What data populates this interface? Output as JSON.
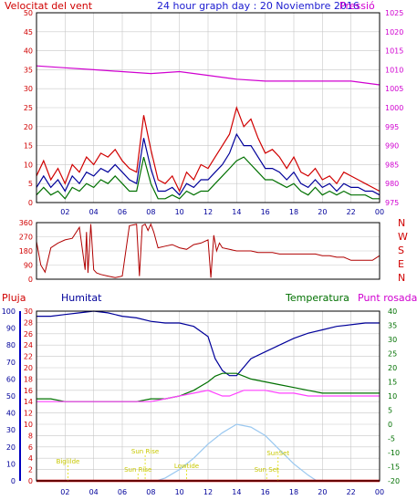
{
  "header": {
    "left_label": "Velocitat del vent",
    "center_title": "24 hour graph day : 20 Noviembre 2016",
    "right_label": "Pressió"
  },
  "colors": {
    "red": "#d00000",
    "magenta": "#d000d0",
    "blue": "#00009a",
    "green": "#007000",
    "pink": "#ff40ff",
    "dark_red": "#b00000",
    "sky": "#9ac8f0",
    "yellow": "#e0e000",
    "grid": "#c8c8c8"
  },
  "chart_data": [
    {
      "type": "line",
      "name": "wind-and-pressure",
      "x_ticks": [
        "02",
        "04",
        "06",
        "08",
        "10",
        "12",
        "14",
        "16",
        "18",
        "20",
        "22",
        "00"
      ],
      "y_left": {
        "min": 0,
        "max": 50,
        "ticks": [
          0,
          5,
          10,
          15,
          20,
          25,
          30,
          35,
          40,
          45,
          50
        ]
      },
      "y_right": {
        "min": 975,
        "max": 1025,
        "ticks": [
          975,
          980,
          985,
          990,
          995,
          1000,
          1005,
          1010,
          1015,
          1020,
          1025
        ]
      },
      "series": [
        {
          "color": "red",
          "x": [
            0,
            0.5,
            1,
            1.5,
            2,
            2.5,
            3,
            3.5,
            4,
            4.5,
            5,
            5.5,
            6,
            6.5,
            7,
            7.5,
            8,
            8.5,
            9,
            9.5,
            10,
            10.5,
            11,
            11.5,
            12,
            12.5,
            13,
            13.5,
            14,
            14.5,
            15,
            15.5,
            16,
            16.5,
            17,
            17.5,
            18,
            18.5,
            19,
            19.5,
            20,
            20.5,
            21,
            21.5,
            22,
            22.5,
            23,
            23.5,
            24
          ],
          "y": [
            7,
            11,
            6,
            9,
            5,
            10,
            8,
            12,
            10,
            13,
            12,
            14,
            11,
            9,
            8,
            23,
            14,
            6,
            5,
            7,
            3,
            8,
            6,
            10,
            9,
            12,
            15,
            18,
            25,
            20,
            22,
            17,
            13,
            14,
            12,
            9,
            12,
            8,
            7,
            9,
            6,
            7,
            5,
            8,
            7,
            6,
            5,
            4,
            3
          ]
        },
        {
          "color": "blue",
          "x": [
            0,
            0.5,
            1,
            1.5,
            2,
            2.5,
            3,
            3.5,
            4,
            4.5,
            5,
            5.5,
            6,
            6.5,
            7,
            7.5,
            8,
            8.5,
            9,
            9.5,
            10,
            10.5,
            11,
            11.5,
            12,
            12.5,
            13,
            13.5,
            14,
            14.5,
            15,
            15.5,
            16,
            16.5,
            17,
            17.5,
            18,
            18.5,
            19,
            19.5,
            20,
            20.5,
            21,
            21.5,
            22,
            22.5,
            23,
            23.5,
            24
          ],
          "y": [
            4,
            7,
            4,
            6,
            3,
            7,
            5,
            8,
            7,
            9,
            8,
            10,
            8,
            6,
            5,
            17,
            9,
            3,
            3,
            4,
            2,
            5,
            4,
            6,
            6,
            8,
            10,
            13,
            18,
            15,
            15,
            12,
            9,
            9,
            8,
            6,
            8,
            5,
            4,
            6,
            4,
            5,
            3,
            5,
            4,
            4,
            3,
            3,
            2
          ]
        },
        {
          "color": "green",
          "x": [
            0,
            0.5,
            1,
            1.5,
            2,
            2.5,
            3,
            3.5,
            4,
            4.5,
            5,
            5.5,
            6,
            6.5,
            7,
            7.5,
            8,
            8.5,
            9,
            9.5,
            10,
            10.5,
            11,
            11.5,
            12,
            12.5,
            13,
            13.5,
            14,
            14.5,
            15,
            15.5,
            16,
            16.5,
            17,
            17.5,
            18,
            18.5,
            19,
            19.5,
            20,
            20.5,
            21,
            21.5,
            22,
            22.5,
            23,
            23.5,
            24
          ],
          "y": [
            2,
            4,
            2,
            3,
            1,
            4,
            3,
            5,
            4,
            6,
            5,
            7,
            5,
            3,
            3,
            12,
            5,
            1,
            1,
            2,
            1,
            3,
            2,
            3,
            3,
            5,
            7,
            9,
            11,
            12,
            10,
            8,
            6,
            6,
            5,
            4,
            5,
            3,
            2,
            4,
            2,
            3,
            2,
            3,
            2,
            2,
            2,
            1,
            1
          ]
        },
        {
          "color": "magenta",
          "axis": "right",
          "x": [
            0,
            2,
            4,
            6,
            8,
            10,
            12,
            14,
            16,
            18,
            20,
            22,
            24
          ],
          "y": [
            1011,
            1010.5,
            1010,
            1009.5,
            1009,
            1009.5,
            1008.5,
            1007.5,
            1007,
            1007,
            1007,
            1007,
            1006
          ]
        }
      ]
    },
    {
      "type": "line",
      "name": "wind-direction",
      "y_ticks": [
        0,
        90,
        180,
        270,
        360
      ],
      "compass": [
        "N",
        "W",
        "S",
        "E",
        "N"
      ],
      "series": [
        {
          "color": "dark_red",
          "x": [
            0,
            0.3,
            0.6,
            1,
            1.5,
            2,
            2.5,
            3,
            3.4,
            3.5,
            3.6,
            3.8,
            4,
            4.2,
            4.5,
            5,
            5.5,
            6,
            6.5,
            7,
            7.2,
            7.4,
            7.6,
            7.8,
            8,
            8.2,
            8.5,
            9,
            9.5,
            10,
            10.5,
            11,
            11.5,
            12,
            12.2,
            12.4,
            12.6,
            12.8,
            13,
            13.5,
            14,
            14.5,
            15,
            15.5,
            16,
            16.5,
            17,
            17.5,
            18,
            18.5,
            19,
            19.5,
            20,
            20.5,
            21,
            21.5,
            22,
            22.5,
            23,
            23.5,
            24
          ],
          "y": [
            240,
            90,
            45,
            200,
            230,
            250,
            260,
            330,
            60,
            300,
            40,
            350,
            60,
            40,
            30,
            20,
            10,
            20,
            340,
            350,
            20,
            340,
            350,
            310,
            350,
            300,
            200,
            210,
            220,
            200,
            190,
            220,
            230,
            250,
            10,
            280,
            180,
            230,
            200,
            190,
            180,
            180,
            180,
            170,
            170,
            170,
            160,
            160,
            160,
            160,
            160,
            160,
            150,
            150,
            140,
            140,
            120,
            120,
            120,
            120,
            150
          ]
        }
      ]
    },
    {
      "type": "line",
      "name": "rain-humidity-temperature",
      "x_ticks": [
        "02",
        "04",
        "06",
        "08",
        "10",
        "12",
        "14",
        "16",
        "18",
        "20",
        "22",
        "00"
      ],
      "y_rain": {
        "min": 0,
        "max": 30,
        "ticks": [
          0,
          2,
          4,
          6,
          8,
          10,
          12,
          14,
          16,
          18,
          20,
          22,
          24,
          26,
          28,
          30
        ]
      },
      "y_humidity": {
        "min": 0,
        "max": 100,
        "ticks": [
          0,
          10,
          20,
          30,
          40,
          50,
          60,
          70,
          80,
          90,
          100
        ]
      },
      "y_temperature": {
        "min": -20,
        "max": 40,
        "ticks": [
          -20,
          -15,
          -10,
          -5,
          0,
          5,
          10,
          15,
          20,
          25,
          30,
          35,
          40
        ]
      },
      "series": [
        {
          "color": "blue",
          "axis": "humidity",
          "x": [
            0,
            1,
            2,
            3,
            4,
            5,
            6,
            7,
            8,
            9,
            10,
            11,
            12,
            12.5,
            13,
            13.5,
            14,
            14.5,
            15,
            16,
            17,
            18,
            19,
            20,
            21,
            22,
            23,
            24
          ],
          "y": [
            97,
            97,
            98,
            99,
            100,
            99,
            97,
            96,
            94,
            93,
            93,
            91,
            85,
            72,
            65,
            62,
            62,
            67,
            72,
            76,
            80,
            84,
            87,
            89,
            91,
            92,
            93,
            93
          ]
        },
        {
          "color": "green",
          "axis": "temperature",
          "x": [
            0,
            1,
            2,
            3,
            4,
            5,
            6,
            7,
            8,
            9,
            10,
            11,
            12,
            12.5,
            13,
            13.5,
            14,
            14.5,
            15,
            16,
            17,
            18,
            19,
            20,
            21,
            22,
            23,
            24
          ],
          "y": [
            9,
            9,
            8,
            8,
            8,
            8,
            8,
            8,
            9,
            9,
            10,
            12,
            15,
            17,
            18,
            18,
            18,
            17,
            16,
            15,
            14,
            13,
            12,
            11,
            11,
            11,
            11,
            11
          ]
        },
        {
          "color": "pink",
          "axis": "temperature",
          "x": [
            0,
            1,
            2,
            3,
            4,
            5,
            6,
            7,
            8,
            9,
            10,
            11,
            12,
            12.5,
            13,
            13.5,
            14,
            14.5,
            15,
            16,
            17,
            18,
            19,
            20,
            21,
            22,
            23,
            24
          ],
          "y": [
            8,
            8,
            8,
            8,
            8,
            8,
            8,
            8,
            8,
            9,
            10,
            11,
            12,
            11,
            10,
            10,
            11,
            12,
            12,
            12,
            11,
            11,
            10,
            10,
            10,
            10,
            10,
            10
          ]
        },
        {
          "color": "sky",
          "axis": "temperature",
          "x": [
            8.4,
            9,
            10,
            11,
            12,
            13,
            14,
            15,
            16,
            17,
            18,
            19,
            19.6
          ],
          "y": [
            -20,
            -19,
            -16,
            -12,
            -7,
            -3,
            0,
            -1,
            -4,
            -9,
            -14,
            -18,
            -20
          ]
        },
        {
          "color": "red",
          "axis": "rain",
          "x": [
            0,
            24
          ],
          "y": [
            0,
            0
          ]
        }
      ],
      "legend": {
        "rain": "Pluja",
        "humidity": "Humitat",
        "temperature": "Temperatura",
        "dewpoint": "Punt rosada"
      },
      "annotations": [
        {
          "text": "Biglilde",
          "x": 2.2
        },
        {
          "text": "Sun Rise",
          "x": 7.6
        },
        {
          "text": "Sun Rise",
          "x": 7.1
        },
        {
          "text": "Lowtide",
          "x": 10.5
        },
        {
          "text": "SunSet",
          "x": 16.9
        },
        {
          "text": "Sun Set",
          "x": 16.1
        }
      ]
    }
  ],
  "bottom": {
    "left_title": "Pluja",
    "mid_title": "Humitat",
    "right_title": "Temperatura",
    "right2_title": "Punt rosada"
  }
}
